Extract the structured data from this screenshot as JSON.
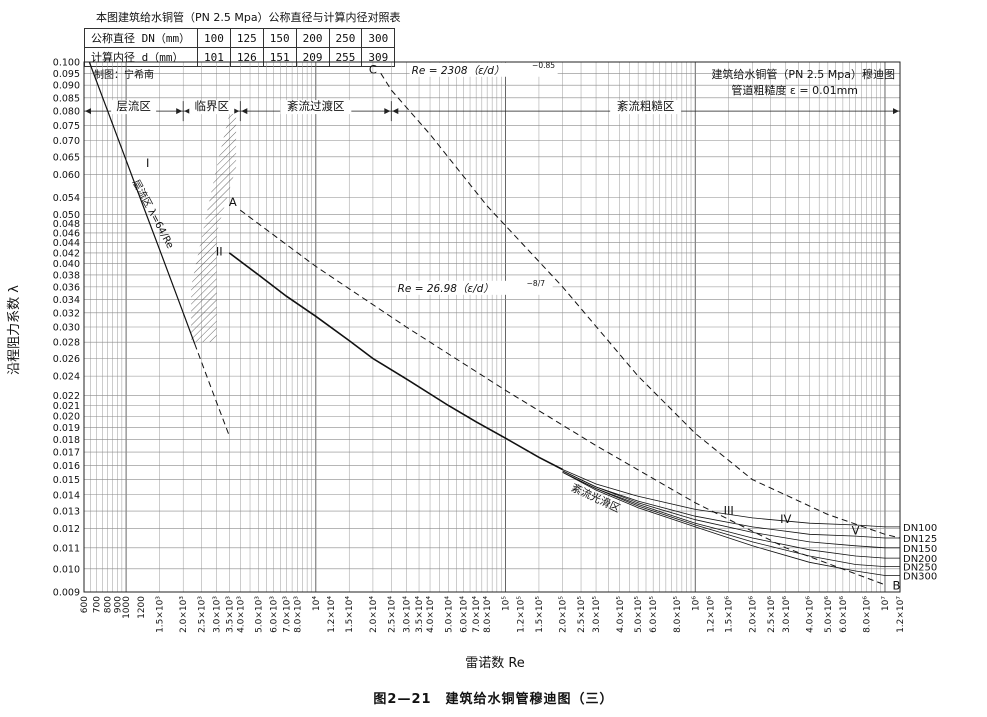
{
  "table": {
    "title": "本图建筑给水铜管（PN 2.5 Mpa）公称直径与计算内径对照表",
    "rows": [
      {
        "label": "公称直径 DN（mm）",
        "cells": [
          "100",
          "125",
          "150",
          "200",
          "250",
          "300"
        ]
      },
      {
        "label": "计算内径 d（mm）",
        "cells": [
          "101",
          "126",
          "151",
          "209",
          "255",
          "309"
        ]
      }
    ]
  },
  "figure_caption": "图2—21　建筑给水铜管穆迪图（三）",
  "chart_data": {
    "type": "line",
    "title": "建筑给水铜管（PN 2.5 Mpa）穆迪图",
    "subtitle": "管道粗糙度 ε = 0.01mm",
    "author": "制图：宁希南",
    "xlabel": "雷诺数 Re",
    "ylabel": "沿程阻力系数 λ",
    "x_scale": "log",
    "y_scale": "log",
    "xlim": [
      600,
      12000000
    ],
    "ylim": [
      0.009,
      0.1
    ],
    "x_tick_labels": [
      {
        "x": 600,
        "label": "600"
      },
      {
        "x": 700,
        "label": "700"
      },
      {
        "x": 800,
        "label": "800"
      },
      {
        "x": 900,
        "label": "900"
      },
      {
        "x": 1000,
        "label": "1000"
      },
      {
        "x": 1200,
        "label": "1200"
      },
      {
        "x": 1500,
        "label": "1.5×10³"
      },
      {
        "x": 2000,
        "label": "2.0×10³"
      },
      {
        "x": 2500,
        "label": "2.5×10³"
      },
      {
        "x": 3000,
        "label": "3.0×10³"
      },
      {
        "x": 3500,
        "label": "3.5×10³"
      },
      {
        "x": 4000,
        "label": "4.0×10³"
      },
      {
        "x": 5000,
        "label": "5.0×10³"
      },
      {
        "x": 6000,
        "label": "6.0×10³"
      },
      {
        "x": 7000,
        "label": "7.0×10³"
      },
      {
        "x": 8000,
        "label": "8.0×10³"
      },
      {
        "x": 10000,
        "label": "10⁴"
      },
      {
        "x": 12000,
        "label": "1.2×10⁴"
      },
      {
        "x": 15000,
        "label": "1.5×10⁴"
      },
      {
        "x": 20000,
        "label": "2.0×10⁴"
      },
      {
        "x": 25000,
        "label": "2.5×10⁴"
      },
      {
        "x": 30000,
        "label": "3.0×10⁴"
      },
      {
        "x": 35000,
        "label": "3.5×10⁴"
      },
      {
        "x": 40000,
        "label": "4.0×10⁴"
      },
      {
        "x": 50000,
        "label": "5.0×10⁴"
      },
      {
        "x": 60000,
        "label": "6.0×10⁴"
      },
      {
        "x": 70000,
        "label": "7.0×10⁴"
      },
      {
        "x": 80000,
        "label": "8.0×10⁴"
      },
      {
        "x": 100000,
        "label": "10⁵"
      },
      {
        "x": 120000,
        "label": "1.2×10⁵"
      },
      {
        "x": 150000,
        "label": "1.5×10⁵"
      },
      {
        "x": 200000,
        "label": "2.0×10⁵"
      },
      {
        "x": 250000,
        "label": "2.5×10⁵"
      },
      {
        "x": 300000,
        "label": "3.0×10⁵"
      },
      {
        "x": 400000,
        "label": "4.0×10⁵"
      },
      {
        "x": 500000,
        "label": "5.0×10⁵"
      },
      {
        "x": 600000,
        "label": "6.0×10⁵"
      },
      {
        "x": 800000,
        "label": "8.0×10⁵"
      },
      {
        "x": 1000000,
        "label": "10⁶"
      },
      {
        "x": 1200000,
        "label": "1.2×10⁶"
      },
      {
        "x": 1500000,
        "label": "1.5×10⁶"
      },
      {
        "x": 2000000,
        "label": "2.0×10⁶"
      },
      {
        "x": 2500000,
        "label": "2.5×10⁶"
      },
      {
        "x": 3000000,
        "label": "3.0×10⁶"
      },
      {
        "x": 4000000,
        "label": "4.0×10⁶"
      },
      {
        "x": 5000000,
        "label": "5.0×10⁶"
      },
      {
        "x": 6000000,
        "label": "6.0×10⁶"
      },
      {
        "x": 8000000,
        "label": "8.0×10⁶"
      },
      {
        "x": 10000000,
        "label": "10⁷"
      },
      {
        "x": 12000000,
        "label": "1.2×10⁷"
      }
    ],
    "y_ticks": [
      0.009,
      0.01,
      0.011,
      0.012,
      0.013,
      0.014,
      0.015,
      0.016,
      0.017,
      0.018,
      0.019,
      0.02,
      0.021,
      0.022,
      0.024,
      0.026,
      0.028,
      0.03,
      0.032,
      0.034,
      0.036,
      0.038,
      0.04,
      0.042,
      0.044,
      0.046,
      0.048,
      0.05,
      0.054,
      0.06,
      0.065,
      0.07,
      0.075,
      0.08,
      0.085,
      0.09,
      0.095,
      0.1
    ],
    "y_tick_labels": [
      "0.009",
      "0.010",
      "0.011",
      "0.012",
      "0.013",
      "0.014",
      "0.015",
      "0.016",
      "0.017",
      "0.018",
      "0.019",
      "0.020",
      "0.021",
      "0.022",
      "0.024",
      "0.026",
      "0.028",
      "0.030",
      "0.032",
      "0.034",
      "0.036",
      "0.038",
      "0.040",
      "0.042",
      "0.044",
      "0.046",
      "0.048",
      "0.050",
      "0.054",
      "0.060",
      "0.065",
      "0.070",
      "0.075",
      "0.080",
      "0.085",
      "0.090",
      "0.095",
      "0.100"
    ],
    "zones": [
      {
        "label": "层流区",
        "x_from": 600,
        "x_to": 2000
      },
      {
        "label": "临界区",
        "x_from": 2000,
        "x_to": 4000
      },
      {
        "label": "紊流过渡区",
        "x_from": 4000,
        "x_to": 25000
      },
      {
        "label": "紊流粗糙区",
        "x_from": 25000,
        "x_to": 12000000
      }
    ],
    "zone_y": 0.08,
    "series": [
      {
        "name": "层流区 λ=64/Re",
        "style": "solid",
        "width": 1.2,
        "points": [
          [
            640,
            0.1
          ],
          [
            800,
            0.08
          ],
          [
            1000,
            0.064
          ],
          [
            1200,
            0.0533
          ],
          [
            1500,
            0.0427
          ],
          [
            2000,
            0.032
          ],
          [
            2300,
            0.0278
          ]
        ]
      },
      {
        "name": "",
        "style": "dashed",
        "width": 1,
        "points": [
          [
            2300,
            0.0278
          ],
          [
            3000,
            0.0213
          ],
          [
            3500,
            0.0183
          ]
        ]
      },
      {
        "name": "紊流光滑区",
        "style": "solid",
        "width": 1.6,
        "points": [
          [
            3500,
            0.042
          ],
          [
            5000,
            0.038
          ],
          [
            7000,
            0.0345
          ],
          [
            10000,
            0.0315
          ],
          [
            15000,
            0.0282
          ],
          [
            20000,
            0.026
          ],
          [
            30000,
            0.0237
          ],
          [
            50000,
            0.021
          ],
          [
            70000,
            0.0195
          ],
          [
            100000,
            0.0181
          ],
          [
            150000,
            0.0166
          ],
          [
            200000,
            0.0157
          ]
        ]
      },
      {
        "name": "DN100",
        "style": "solid",
        "width": 0.8,
        "points": [
          [
            200000,
            0.0157
          ],
          [
            300000,
            0.0147
          ],
          [
            500000,
            0.0139
          ],
          [
            1000000,
            0.0131
          ],
          [
            2000000,
            0.0126
          ],
          [
            4000000,
            0.0123
          ],
          [
            7000000,
            0.0122
          ],
          [
            10000000,
            0.0121
          ],
          [
            12000000,
            0.0121
          ]
        ]
      },
      {
        "name": "DN125",
        "style": "solid",
        "width": 0.8,
        "points": [
          [
            200000,
            0.0156
          ],
          [
            300000,
            0.0145
          ],
          [
            500000,
            0.0136
          ],
          [
            1000000,
            0.0127
          ],
          [
            2000000,
            0.0121
          ],
          [
            4000000,
            0.0117
          ],
          [
            7000000,
            0.0116
          ],
          [
            10000000,
            0.0115
          ],
          [
            12000000,
            0.0115
          ]
        ]
      },
      {
        "name": "DN150",
        "style": "solid",
        "width": 0.8,
        "points": [
          [
            200000,
            0.0156
          ],
          [
            300000,
            0.0145
          ],
          [
            500000,
            0.0135
          ],
          [
            1000000,
            0.0125
          ],
          [
            2000000,
            0.0118
          ],
          [
            4000000,
            0.0113
          ],
          [
            7000000,
            0.0111
          ],
          [
            10000000,
            0.011
          ],
          [
            12000000,
            0.011
          ]
        ]
      },
      {
        "name": "DN200",
        "style": "solid",
        "width": 0.8,
        "points": [
          [
            200000,
            0.0155
          ],
          [
            300000,
            0.0144
          ],
          [
            500000,
            0.0134
          ],
          [
            1000000,
            0.0123
          ],
          [
            2000000,
            0.0115
          ],
          [
            4000000,
            0.0109
          ],
          [
            7000000,
            0.0106
          ],
          [
            10000000,
            0.0105
          ],
          [
            12000000,
            0.0105
          ]
        ]
      },
      {
        "name": "DN250",
        "style": "solid",
        "width": 0.8,
        "points": [
          [
            200000,
            0.0155
          ],
          [
            300000,
            0.0144
          ],
          [
            500000,
            0.0133
          ],
          [
            1000000,
            0.0122
          ],
          [
            2000000,
            0.0113
          ],
          [
            4000000,
            0.0106
          ],
          [
            7000000,
            0.0102
          ],
          [
            10000000,
            0.0101
          ],
          [
            12000000,
            0.0101
          ]
        ]
      },
      {
        "name": "DN300",
        "style": "solid",
        "width": 0.8,
        "points": [
          [
            200000,
            0.0155
          ],
          [
            300000,
            0.0143
          ],
          [
            500000,
            0.0132
          ],
          [
            1000000,
            0.0121
          ],
          [
            2000000,
            0.0111
          ],
          [
            4000000,
            0.0103
          ],
          [
            7000000,
            0.0099
          ],
          [
            10000000,
            0.0097
          ],
          [
            12000000,
            0.0097
          ]
        ]
      },
      {
        "name": "Re = 26.98（ε/d）^(-8/7)",
        "style": "dashed",
        "width": 1,
        "points": [
          [
            4000,
            0.051
          ],
          [
            10000,
            0.0395
          ],
          [
            30000,
            0.03
          ],
          [
            100000,
            0.0225
          ],
          [
            300000,
            0.0175
          ],
          [
            1000000,
            0.0135
          ],
          [
            3000000,
            0.011
          ],
          [
            10000000,
            0.0093
          ]
        ]
      },
      {
        "name": "Re = 2308（ε/d）^(-0.85)",
        "style": "dashed",
        "width": 1,
        "points": [
          [
            22000,
            0.095
          ],
          [
            25000,
            0.088
          ],
          [
            40000,
            0.072
          ],
          [
            80000,
            0.052
          ],
          [
            200000,
            0.036
          ],
          [
            500000,
            0.024
          ],
          [
            1000000,
            0.0185
          ],
          [
            2000000,
            0.015
          ],
          [
            5000000,
            0.0128
          ],
          [
            10000000,
            0.0117
          ],
          [
            12000000,
            0.0115
          ]
        ]
      }
    ],
    "hatch_region": [
      [
        3000,
        0.046
      ],
      [
        3800,
        0.062
      ],
      [
        3800,
        0.079
      ],
      [
        3500,
        0.079
      ],
      [
        3000,
        0.062
      ],
      [
        2200,
        0.036
      ],
      [
        2200,
        0.028
      ],
      [
        3000,
        0.028
      ]
    ],
    "annotations": [
      {
        "text": "I",
        "x": 1300,
        "y": 0.062,
        "style": "roman"
      },
      {
        "text": "层流区 λ=64/Re",
        "x": 1080,
        "y": 0.058,
        "style": "rotated"
      },
      {
        "text": "II",
        "x": 3100,
        "y": 0.0415,
        "style": "roman"
      },
      {
        "text": "A",
        "x": 3650,
        "y": 0.052,
        "style": "letter"
      },
      {
        "text": "C",
        "x": 20000,
        "y": 0.095,
        "style": "letter"
      },
      {
        "text": "III",
        "x": 1500000,
        "y": 0.0128,
        "style": "roman"
      },
      {
        "text": "IV",
        "x": 3000000,
        "y": 0.0123,
        "style": "roman"
      },
      {
        "text": "V",
        "x": 7000000,
        "y": 0.0117,
        "style": "roman"
      },
      {
        "text": "B",
        "x": 11500000,
        "y": 0.0091,
        "style": "letter"
      },
      {
        "text": "紊流光滑区",
        "x": 220000,
        "y": 0.0143,
        "style": "slanted"
      },
      {
        "text": "Re = 26.98（ε/d）",
        "x": 27000,
        "y": 0.0352,
        "style": "formula",
        "sup": "−8/7"
      },
      {
        "text": "Re = 2308（ε/d）",
        "x": 32000,
        "y": 0.0948,
        "style": "formula",
        "sup": "−0.85"
      }
    ]
  }
}
